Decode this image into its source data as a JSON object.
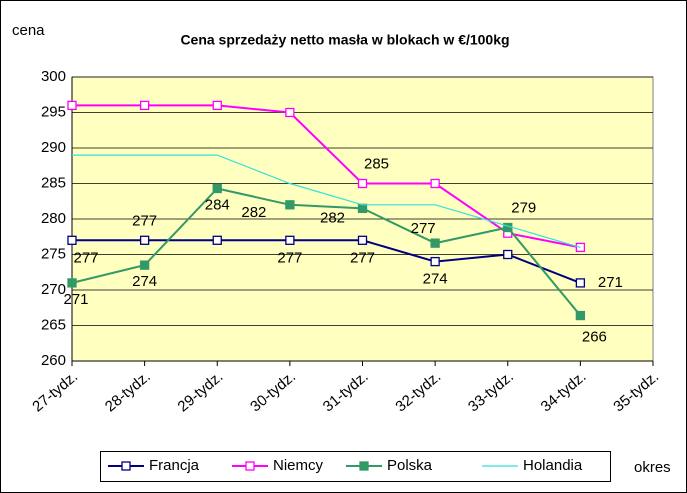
{
  "chart_data": {
    "type": "line",
    "title": "Cena sprzedaży netto masła w blokach w €/100kg",
    "y_label": "cena",
    "x_label": "okres",
    "categories": [
      "27-tydz.",
      "28-tydz.",
      "29-tydz.",
      "30-tydz.",
      "31-tydz.",
      "32-tydz.",
      "33-tydz.",
      "34-tydz.",
      "35-tydz."
    ],
    "series": [
      {
        "name": "Francja",
        "color": "#000080",
        "marker": "hollow-square",
        "values": [
          277,
          277,
          277,
          277,
          277,
          274,
          275,
          271,
          null
        ],
        "value_labels": [
          "277",
          "277",
          null,
          "277",
          "277",
          "274",
          null,
          "271",
          null
        ]
      },
      {
        "name": "Niemcy",
        "color": "#ff00ff",
        "marker": "hollow-square",
        "values": [
          296,
          296,
          296,
          295,
          285,
          285,
          278,
          276,
          null
        ],
        "value_labels": [
          null,
          null,
          null,
          null,
          "285",
          null,
          null,
          null,
          null
        ]
      },
      {
        "name": "Polska",
        "color": "#339966",
        "marker": "filled-square",
        "values": [
          271,
          273.5,
          284.3,
          282,
          281.5,
          276.6,
          278.8,
          266.4,
          null
        ],
        "value_labels": [
          "271",
          "274",
          "284",
          "282",
          "282",
          "277",
          "279",
          "266",
          null
        ]
      },
      {
        "name": "Holandia",
        "color": "#33e0e0",
        "marker": "none",
        "values": [
          289,
          289,
          289,
          285,
          282,
          282,
          279,
          276,
          null
        ]
      }
    ],
    "ylim": [
      260,
      300
    ],
    "yticks": [
      260,
      265,
      270,
      275,
      280,
      285,
      290,
      295,
      300
    ],
    "grid": true
  }
}
